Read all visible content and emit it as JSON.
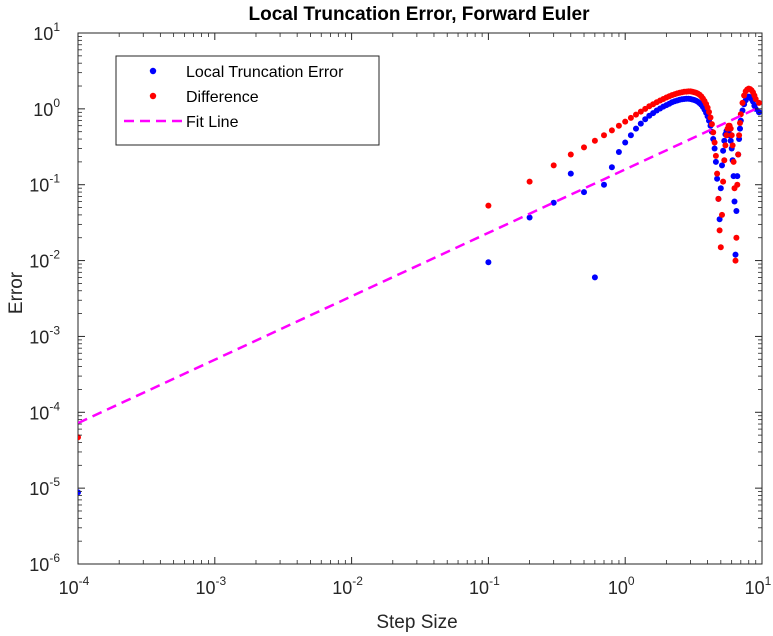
{
  "chart_data": {
    "type": "scatter",
    "title": "Local Truncation Error, Forward Euler",
    "xlabel": "Step Size",
    "ylabel": "Error",
    "xscale": "log",
    "yscale": "log",
    "xlim": [
      0.0001,
      10
    ],
    "ylim": [
      1e-06,
      10
    ],
    "grid": false,
    "legend_position": "top-left",
    "x_ticks": [
      {
        "base": "10",
        "exp": "-4",
        "value": 0.0001
      },
      {
        "base": "10",
        "exp": "-3",
        "value": 0.001
      },
      {
        "base": "10",
        "exp": "-2",
        "value": 0.01
      },
      {
        "base": "10",
        "exp": "-1",
        "value": 0.1
      },
      {
        "base": "10",
        "exp": "0",
        "value": 1
      },
      {
        "base": "10",
        "exp": "1",
        "value": 10
      }
    ],
    "y_ticks": [
      {
        "base": "10",
        "exp": "-6",
        "value": 1e-06
      },
      {
        "base": "10",
        "exp": "-5",
        "value": 1e-05
      },
      {
        "base": "10",
        "exp": "-4",
        "value": 0.0001
      },
      {
        "base": "10",
        "exp": "-3",
        "value": 0.001
      },
      {
        "base": "10",
        "exp": "-2",
        "value": 0.01
      },
      {
        "base": "10",
        "exp": "-1",
        "value": 0.1
      },
      {
        "base": "10",
        "exp": "0",
        "value": 1
      },
      {
        "base": "10",
        "exp": "1",
        "value": 10
      }
    ],
    "series": [
      {
        "name": "Local Truncation Error",
        "style": "points",
        "color": "#0000ff",
        "points": [
          [
            0.0001,
            8.8e-06
          ],
          [
            0.1,
            0.0095
          ],
          [
            0.2,
            0.037
          ],
          [
            0.3,
            0.058
          ],
          [
            0.4,
            0.14
          ],
          [
            0.5,
            0.08
          ],
          [
            0.6,
            0.006
          ],
          [
            0.7,
            0.1
          ],
          [
            0.8,
            0.17
          ],
          [
            0.9,
            0.27
          ],
          [
            1.0,
            0.36
          ],
          [
            1.1,
            0.45
          ],
          [
            1.2,
            0.55
          ],
          [
            1.3,
            0.64
          ],
          [
            1.4,
            0.73
          ],
          [
            1.5,
            0.81
          ],
          [
            1.6,
            0.88
          ],
          [
            1.7,
            0.95
          ],
          [
            1.8,
            1.01
          ],
          [
            1.9,
            1.07
          ],
          [
            2.0,
            1.12
          ],
          [
            2.1,
            1.17
          ],
          [
            2.2,
            1.22
          ],
          [
            2.3,
            1.26
          ],
          [
            2.4,
            1.29
          ],
          [
            2.5,
            1.32
          ],
          [
            2.6,
            1.34
          ],
          [
            2.7,
            1.35
          ],
          [
            2.8,
            1.36
          ],
          [
            2.9,
            1.36
          ],
          [
            3.0,
            1.35
          ],
          [
            3.1,
            1.33
          ],
          [
            3.2,
            1.31
          ],
          [
            3.3,
            1.28
          ],
          [
            3.4,
            1.24
          ],
          [
            3.5,
            1.19
          ],
          [
            3.6,
            1.13
          ],
          [
            3.7,
            1.06
          ],
          [
            3.8,
            0.98
          ],
          [
            3.9,
            0.89
          ],
          [
            4.0,
            0.8
          ],
          [
            4.1,
            0.7
          ],
          [
            4.2,
            0.6
          ],
          [
            4.3,
            0.5
          ],
          [
            4.4,
            0.4
          ],
          [
            4.5,
            0.3
          ],
          [
            4.6,
            0.2
          ],
          [
            4.7,
            0.12
          ],
          [
            4.8,
            0.065
          ],
          [
            4.9,
            0.035
          ],
          [
            5.0,
            0.09
          ],
          [
            5.1,
            0.18
          ],
          [
            5.2,
            0.28
          ],
          [
            5.3,
            0.38
          ],
          [
            5.4,
            0.46
          ],
          [
            5.5,
            0.51
          ],
          [
            5.6,
            0.52
          ],
          [
            5.7,
            0.5
          ],
          [
            5.8,
            0.45
          ],
          [
            5.9,
            0.38
          ],
          [
            6.0,
            0.3
          ],
          [
            6.1,
            0.21
          ],
          [
            6.2,
            0.13
          ],
          [
            6.3,
            0.06
          ],
          [
            6.4,
            0.012
          ],
          [
            6.5,
            0.045
          ],
          [
            6.6,
            0.13
          ],
          [
            6.7,
            0.25
          ],
          [
            6.8,
            0.4
          ],
          [
            6.9,
            0.55
          ],
          [
            7.0,
            0.7
          ],
          [
            7.2,
            0.95
          ],
          [
            7.4,
            1.15
          ],
          [
            7.6,
            1.3
          ],
          [
            7.8,
            1.4
          ],
          [
            8.0,
            1.45
          ],
          [
            8.2,
            1.42
          ],
          [
            8.4,
            1.35
          ],
          [
            8.6,
            1.25
          ],
          [
            8.8,
            1.1
          ],
          [
            9.0,
            1.0
          ],
          [
            9.5,
            0.9
          ]
        ]
      },
      {
        "name": "Difference",
        "style": "points",
        "color": "#ff0000",
        "points": [
          [
            0.0001,
            4.7e-05
          ],
          [
            0.1,
            0.053
          ],
          [
            0.2,
            0.11
          ],
          [
            0.3,
            0.18
          ],
          [
            0.4,
            0.25
          ],
          [
            0.5,
            0.31
          ],
          [
            0.6,
            0.38
          ],
          [
            0.7,
            0.45
          ],
          [
            0.8,
            0.52
          ],
          [
            0.9,
            0.6
          ],
          [
            1.0,
            0.68
          ],
          [
            1.1,
            0.76
          ],
          [
            1.2,
            0.84
          ],
          [
            1.3,
            0.92
          ],
          [
            1.4,
            1.0
          ],
          [
            1.5,
            1.08
          ],
          [
            1.6,
            1.15
          ],
          [
            1.7,
            1.22
          ],
          [
            1.8,
            1.29
          ],
          [
            1.9,
            1.35
          ],
          [
            2.0,
            1.41
          ],
          [
            2.1,
            1.47
          ],
          [
            2.2,
            1.52
          ],
          [
            2.3,
            1.56
          ],
          [
            2.4,
            1.6
          ],
          [
            2.5,
            1.63
          ],
          [
            2.6,
            1.66
          ],
          [
            2.7,
            1.68
          ],
          [
            2.8,
            1.69
          ],
          [
            2.9,
            1.7
          ],
          [
            3.0,
            1.7
          ],
          [
            3.1,
            1.68
          ],
          [
            3.2,
            1.66
          ],
          [
            3.3,
            1.63
          ],
          [
            3.4,
            1.59
          ],
          [
            3.5,
            1.53
          ],
          [
            3.6,
            1.46
          ],
          [
            3.7,
            1.37
          ],
          [
            3.8,
            1.27
          ],
          [
            3.9,
            1.16
          ],
          [
            4.0,
            1.04
          ],
          [
            4.1,
            0.91
          ],
          [
            4.2,
            0.77
          ],
          [
            4.3,
            0.63
          ],
          [
            4.4,
            0.49
          ],
          [
            4.5,
            0.36
          ],
          [
            4.6,
            0.24
          ],
          [
            4.7,
            0.14
          ],
          [
            4.8,
            0.065
          ],
          [
            4.9,
            0.025
          ],
          [
            5.0,
            0.015
          ],
          [
            5.1,
            0.04
          ],
          [
            5.2,
            0.11
          ],
          [
            5.3,
            0.21
          ],
          [
            5.4,
            0.33
          ],
          [
            5.5,
            0.45
          ],
          [
            5.6,
            0.55
          ],
          [
            5.7,
            0.6
          ],
          [
            5.8,
            0.6
          ],
          [
            5.9,
            0.55
          ],
          [
            6.0,
            0.45
          ],
          [
            6.1,
            0.33
          ],
          [
            6.2,
            0.2
          ],
          [
            6.3,
            0.09
          ],
          [
            6.4,
            0.01
          ],
          [
            6.5,
            0.02
          ],
          [
            6.6,
            0.1
          ],
          [
            6.7,
            0.25
          ],
          [
            6.8,
            0.45
          ],
          [
            6.9,
            0.65
          ],
          [
            7.0,
            0.85
          ],
          [
            7.2,
            1.2
          ],
          [
            7.4,
            1.5
          ],
          [
            7.6,
            1.7
          ],
          [
            7.8,
            1.8
          ],
          [
            8.0,
            1.85
          ],
          [
            8.2,
            1.82
          ],
          [
            8.4,
            1.75
          ],
          [
            8.6,
            1.65
          ],
          [
            8.8,
            1.5
          ],
          [
            9.0,
            1.35
          ],
          [
            9.5,
            1.2
          ]
        ]
      },
      {
        "name": "Fit Line",
        "style": "dashed-line",
        "color": "#ff00ff",
        "points": [
          [
            0.0001,
            7.2e-05
          ],
          [
            9.0,
            1.0
          ]
        ]
      }
    ]
  }
}
